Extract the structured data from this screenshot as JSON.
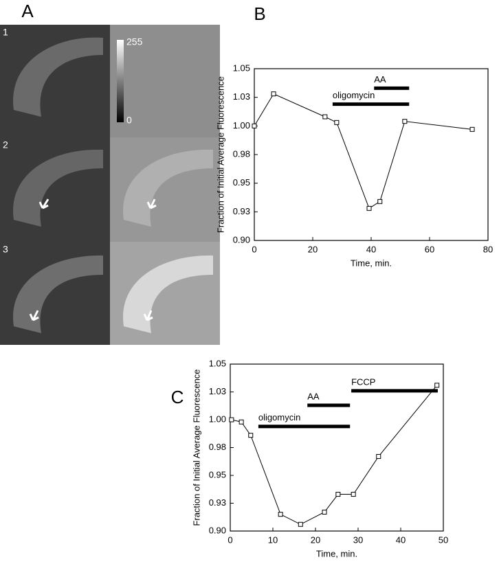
{
  "panel_labels": [
    "A",
    "B",
    "C"
  ],
  "image_panel": {
    "row_labels": [
      "1",
      "2",
      "3"
    ],
    "colorbar": {
      "max": 255,
      "min": 0
    }
  },
  "chart_data": [
    {
      "type": "line",
      "ylabel": "Fraction of Initial Average Fluorescence",
      "xlabel": "Time, min.",
      "x": [
        0,
        6.6,
        24.2,
        28.2,
        39.3,
        43,
        51.5,
        74.6
      ],
      "values": [
        1.0,
        1.028,
        1.008,
        1.003,
        0.928,
        0.934,
        1.004,
        0.997
      ],
      "color": "#000000",
      "marker": "square",
      "xlim": [
        0,
        80
      ],
      "xticks": [
        0,
        20,
        40,
        60,
        80
      ],
      "ylim": [
        0.9,
        1.05
      ],
      "yticks": [
        {
          "value": 0.9,
          "label": "0.90"
        },
        {
          "value": 0.925,
          "label": "0.93"
        },
        {
          "value": 0.95,
          "label": "0.95"
        },
        {
          "value": 0.975,
          "label": "0.98"
        },
        {
          "value": 1.0,
          "label": "1.00"
        },
        {
          "value": 1.025,
          "label": "1.03"
        },
        1.05
      ],
      "intervals": [
        {
          "label": "oligomycin",
          "start": 26.8,
          "end": 53,
          "level": 1.019
        },
        {
          "label": "AA",
          "start": 41,
          "end": 53,
          "level": 1.033
        }
      ]
    },
    {
      "type": "line",
      "ylabel": "Fraction of Initial Average Fluorescence",
      "xlabel": "Time, min.",
      "x": [
        0.3,
        2.6,
        4.8,
        11.8,
        16.5,
        22.1,
        25.3,
        28.9,
        34.8,
        48.5
      ],
      "values": [
        1.0,
        0.998,
        0.986,
        0.915,
        0.906,
        0.917,
        0.933,
        0.933,
        0.967,
        1.031
      ],
      "color": "#000000",
      "marker": "square",
      "xlim": [
        0,
        50
      ],
      "xticks": [
        0,
        10,
        20,
        30,
        40,
        50
      ],
      "ylim": [
        0.9,
        1.05
      ],
      "yticks": [
        {
          "value": 0.9,
          "label": "0.90"
        },
        {
          "value": 0.925,
          "label": "0.93"
        },
        {
          "value": 0.95,
          "label": "0.95"
        },
        {
          "value": 0.975,
          "label": "0.98"
        },
        {
          "value": 1.0,
          "label": "1.00"
        },
        {
          "value": 1.025,
          "label": "1.03"
        },
        1.05
      ],
      "intervals": [
        {
          "label": "oligomycin",
          "start": 6.6,
          "end": 28.1,
          "level": 0.994
        },
        {
          "label": "AA",
          "start": 18.1,
          "end": 28.1,
          "level": 1.013
        },
        {
          "label": "FCCP",
          "start": 28.4,
          "end": 48.7,
          "level": 1.026
        }
      ]
    }
  ]
}
